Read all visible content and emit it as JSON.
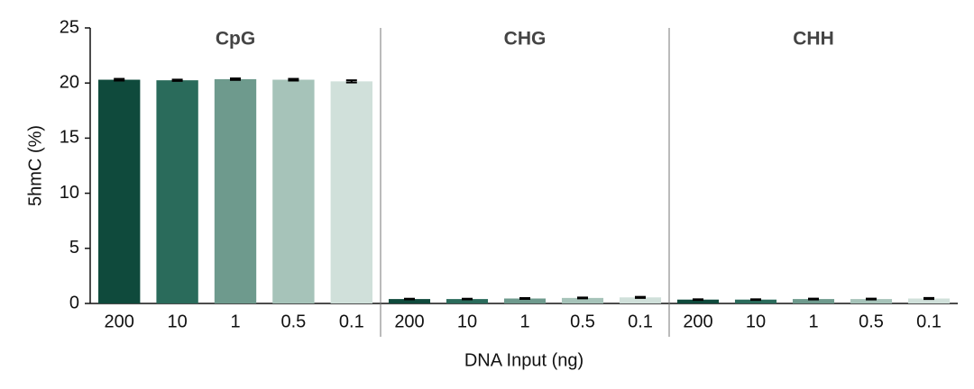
{
  "chart_data": [
    {
      "type": "bar",
      "title": "CpG",
      "y_label": "5hmC (%)",
      "x_label": "DNA Input (ng)",
      "categories": [
        "200",
        "10",
        "1",
        "0.5",
        "0.1"
      ],
      "values": [
        20.3,
        20.25,
        20.35,
        20.3,
        20.15
      ],
      "errors": [
        0.08,
        0.06,
        0.07,
        0.08,
        0.1
      ],
      "colors": [
        "#0f4a3c",
        "#2a6b5b",
        "#6e9a8d",
        "#a6c3b9",
        "#d0e0da"
      ],
      "ylim": [
        0,
        25
      ],
      "yticks": [
        0,
        5,
        10,
        15,
        20,
        25
      ]
    },
    {
      "type": "bar",
      "title": "CHG",
      "categories": [
        "200",
        "10",
        "1",
        "0.5",
        "0.1"
      ],
      "values": [
        0.4,
        0.4,
        0.45,
        0.5,
        0.55
      ],
      "errors": [
        0.03,
        0.03,
        0.04,
        0.04,
        0.05
      ],
      "colors": [
        "#0f4a3c",
        "#2a6b5b",
        "#6e9a8d",
        "#a6c3b9",
        "#d0e0da"
      ]
    },
    {
      "type": "bar",
      "title": "CHH",
      "categories": [
        "200",
        "10",
        "1",
        "0.5",
        "0.1"
      ],
      "values": [
        0.35,
        0.35,
        0.4,
        0.4,
        0.45
      ],
      "errors": [
        0.03,
        0.03,
        0.04,
        0.04,
        0.05
      ],
      "colors": [
        "#0f4a3c",
        "#2a6b5b",
        "#6e9a8d",
        "#a6c3b9",
        "#d0e0da"
      ]
    }
  ]
}
